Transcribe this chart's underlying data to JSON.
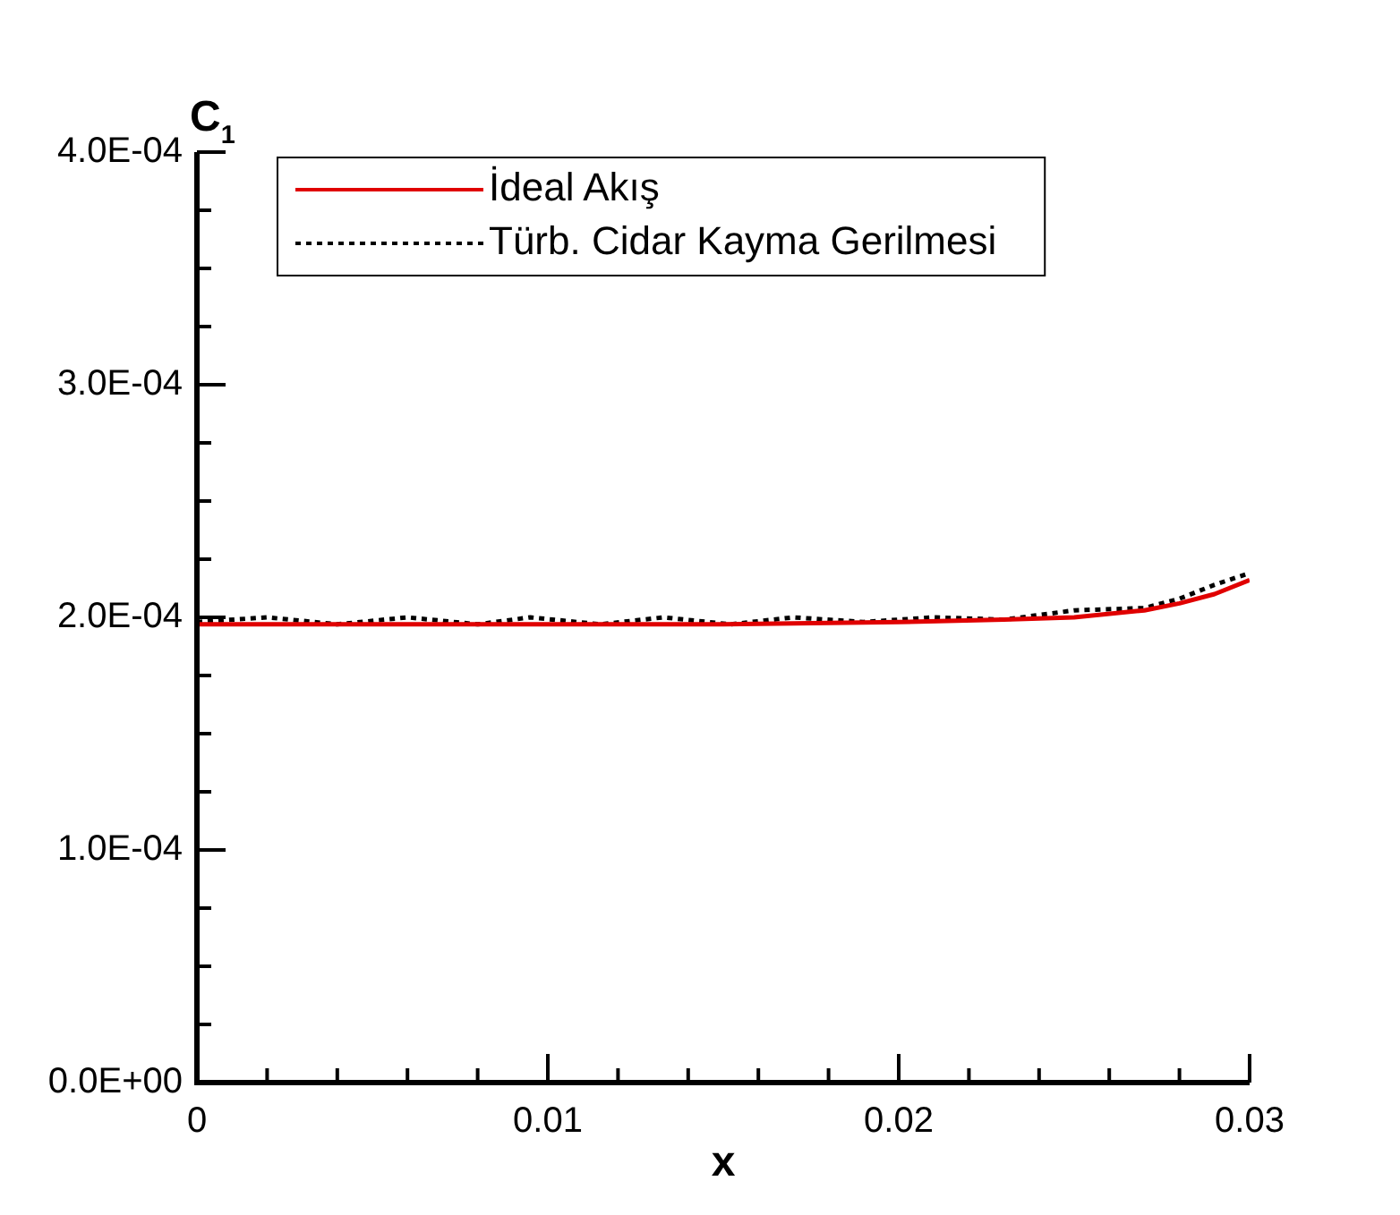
{
  "chart_data": {
    "type": "line",
    "xlabel": "x",
    "ylabel": "C$_{1}$",
    "xlim": [
      0,
      0.03
    ],
    "ylim": [
      0,
      0.0004
    ],
    "xticks": [
      0,
      {
        "value": 0.002,
        "label": null
      },
      {
        "value": 0.004,
        "label": null
      },
      {
        "value": 0.006,
        "label": null
      },
      {
        "value": 0.008,
        "label": null
      },
      0.01,
      {
        "value": 0.012,
        "label": null
      },
      {
        "value": 0.014,
        "label": null
      },
      {
        "value": 0.016,
        "label": null
      },
      {
        "value": 0.018,
        "label": null
      },
      0.02,
      {
        "value": 0.022,
        "label": null
      },
      {
        "value": 0.024,
        "label": null
      },
      {
        "value": 0.026,
        "label": null
      },
      {
        "value": 0.028,
        "label": null
      },
      0.03
    ],
    "yticks": [
      {
        "value": 0,
        "label": "0.0E+00"
      },
      {
        "value": 2.5e-05,
        "label": null
      },
      {
        "value": 5e-05,
        "label": null
      },
      {
        "value": 7.5e-05,
        "label": null
      },
      {
        "value": 0.0001,
        "label": "1.0E-04"
      },
      {
        "value": 0.000125,
        "label": null
      },
      {
        "value": 0.00015,
        "label": null
      },
      {
        "value": 0.000175,
        "label": null
      },
      {
        "value": 0.0002,
        "label": "2.0E-04"
      },
      {
        "value": 0.000225,
        "label": null
      },
      {
        "value": 0.00025,
        "label": null
      },
      {
        "value": 0.000275,
        "label": null
      },
      {
        "value": 0.0003,
        "label": "3.0E-04"
      },
      {
        "value": 0.000325,
        "label": null
      },
      {
        "value": 0.00035,
        "label": null
      },
      {
        "value": 0.000375,
        "label": null
      },
      {
        "value": 0.0004,
        "label": "4.0E-04"
      }
    ],
    "grid": false,
    "legend": "top left",
    "marker": "none",
    "series": [
      {
        "name": "İdeal Akış",
        "color": "#e00000",
        "line_style": "solid",
        "x": [
          0,
          0.005,
          0.01,
          0.015,
          0.02,
          0.023,
          0.025,
          0.027,
          0.028,
          0.029,
          0.03
        ],
        "values": [
          0.000197,
          0.000197,
          0.000197,
          0.000197,
          0.000198,
          0.000199,
          0.0002,
          0.000203,
          0.000206,
          0.00021,
          0.000216
        ]
      },
      {
        "name": "Türb. Cidar Kayma Gerilmesi",
        "color": "#000000",
        "line_style": "dotted",
        "x": [
          0,
          0.002,
          0.004,
          0.006,
          0.008,
          0.0095,
          0.0115,
          0.0133,
          0.0152,
          0.017,
          0.019,
          0.021,
          0.023,
          0.025,
          0.027,
          0.028,
          0.029,
          0.03
        ],
        "values": [
          0.000198,
          0.0002,
          0.000197,
          0.0002,
          0.000197,
          0.0002,
          0.000197,
          0.0002,
          0.000197,
          0.0002,
          0.000198,
          0.0002,
          0.000199,
          0.000203,
          0.000204,
          0.000208,
          0.000214,
          0.000219
        ]
      }
    ]
  }
}
